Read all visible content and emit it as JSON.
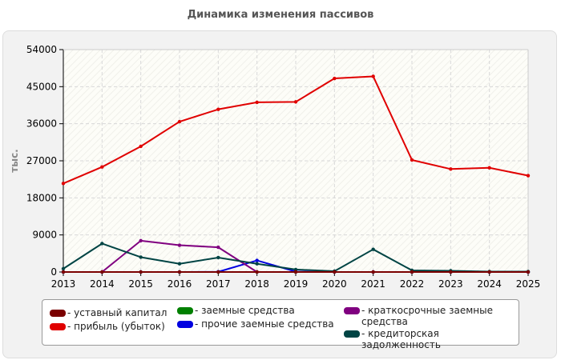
{
  "chart_data": {
    "type": "line",
    "title": "Динамика изменения пассивов",
    "ylabel": "тыс.",
    "xlabel": "",
    "x": [
      2013,
      2014,
      2015,
      2016,
      2017,
      2018,
      2019,
      2020,
      2021,
      2022,
      2023,
      2024,
      2025
    ],
    "ylim": [
      0,
      54000
    ],
    "yticks": [
      0,
      9000,
      18000,
      27000,
      36000,
      45000,
      54000
    ],
    "grid": true,
    "legend_position": "bottom",
    "series": [
      {
        "name": "- уставный капитал",
        "color": "#7a0000",
        "values": [
          10,
          10,
          10,
          10,
          10,
          10,
          10,
          10,
          10,
          10,
          10,
          10,
          10
        ]
      },
      {
        "name": "- прибыль (убыток)",
        "color": "#e00000",
        "values": [
          21500,
          25500,
          30500,
          36500,
          39500,
          41200,
          41300,
          47000,
          47500,
          27200,
          25000,
          25300,
          23400
        ]
      },
      {
        "name": "- заемные средства",
        "color": "#008000",
        "values": [
          0,
          0,
          0,
          0,
          0,
          0,
          0,
          0,
          0,
          0,
          0,
          0,
          0
        ]
      },
      {
        "name": "- прочие заемные средства",
        "color": "#0000e0",
        "values": [
          0,
          0,
          0,
          0,
          50,
          2800,
          100,
          0,
          0,
          0,
          0,
          0,
          0
        ]
      },
      {
        "name": "- краткосрочные заемные средства",
        "color": "#800080",
        "values": [
          0,
          0,
          7600,
          6500,
          6000,
          0,
          0,
          0,
          0,
          0,
          0,
          0,
          0
        ]
      },
      {
        "name": "- кредиторская задолженность",
        "color": "#004444",
        "values": [
          800,
          6900,
          3600,
          2000,
          3500,
          2000,
          600,
          200,
          5500,
          400,
          300,
          100,
          100
        ]
      }
    ]
  }
}
